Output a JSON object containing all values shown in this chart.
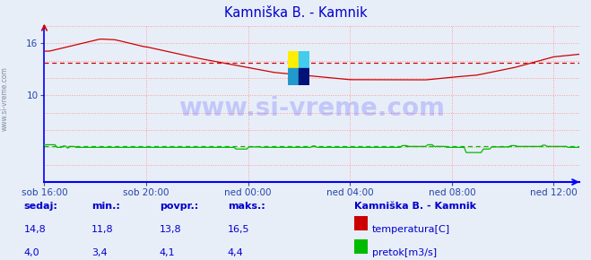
{
  "title": "Kamniška B. - Kamnik",
  "title_color": "#0000cc",
  "bg_color": "#e8eef8",
  "plot_bg_color": "#e8eef8",
  "grid_color_v": "#ff9999",
  "grid_color_h": "#ff9999",
  "grid_style": "dotted",
  "x_axis_color": "#0000ff",
  "y_axis_color": "#cc0000",
  "border_color": "#0000ff",
  "watermark_text": "www.si-vreme.com",
  "watermark_color": "#1a1aff",
  "watermark_alpha": 0.18,
  "ylim": [
    0,
    18
  ],
  "ytick_vals": [
    10,
    16
  ],
  "xlim_hours": 21,
  "x_tick_labels": [
    "sob 16:00",
    "sob 20:00",
    "ned 00:00",
    "ned 04:00",
    "ned 08:00",
    "ned 12:00"
  ],
  "x_tick_positions": [
    0,
    4,
    8,
    12,
    16,
    20
  ],
  "temp_color": "#cc0000",
  "flow_color": "#00bb00",
  "temp_avg": 13.8,
  "flow_avg": 4.1,
  "legend_title": "Kamniška B. - Kamnik",
  "legend_labels": [
    "temperatura[C]",
    "pretok[m3/s]"
  ],
  "legend_colors": [
    "#cc0000",
    "#00bb00"
  ],
  "stats_headers": [
    "sedaj:",
    "min.:",
    "povpr.:",
    "maks.:"
  ],
  "stats_temp": [
    "14,8",
    "11,8",
    "13,8",
    "16,5"
  ],
  "stats_flow": [
    "4,0",
    "3,4",
    "4,1",
    "4,4"
  ],
  "stats_color": "#0000cc",
  "left_text": "www.si-vreme.com"
}
